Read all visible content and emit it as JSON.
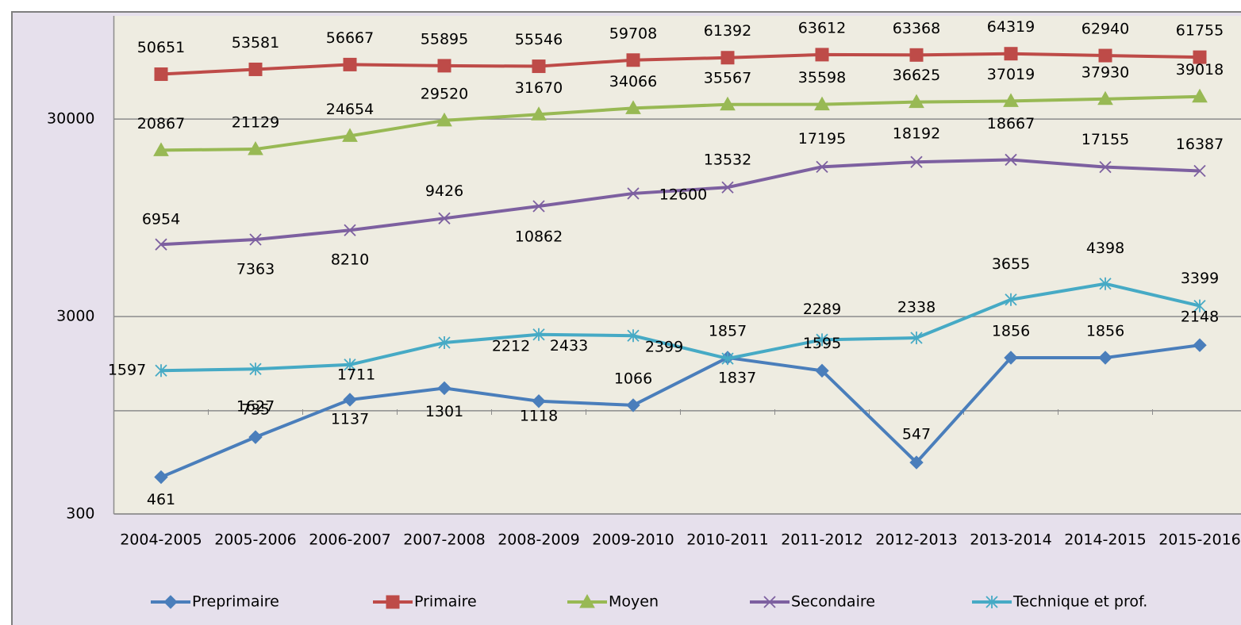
{
  "chart_data": {
    "type": "line",
    "categories": [
      "2004-2005",
      "2005-2006",
      "2006-2007",
      "2007-2008",
      "2008-2009",
      "2009-2010",
      "2010-2011",
      "2011-2012",
      "2012-2013",
      "2013-2014",
      "2014-2015",
      "2015-2016"
    ],
    "series": [
      {
        "name": "Preprimaire",
        "color": "#4a7ebb",
        "marker": "diamond",
        "values": [
          461,
          735,
          1137,
          1301,
          1118,
          1066,
          1857,
          1595,
          547,
          1856,
          1856,
          2148
        ]
      },
      {
        "name": "Primaire",
        "color": "#be4b48",
        "marker": "square",
        "values": [
          50651,
          53581,
          56667,
          55895,
          55546,
          59708,
          61392,
          63612,
          63368,
          64319,
          62940,
          61755
        ]
      },
      {
        "name": "Moyen",
        "color": "#98b954",
        "marker": "triangle",
        "values": [
          20867,
          21129,
          24654,
          29520,
          31670,
          34066,
          35567,
          35598,
          36625,
          37019,
          37930,
          39018
        ]
      },
      {
        "name": "Secondaire",
        "color": "#7d60a0",
        "marker": "x",
        "values": [
          6954,
          7363,
          8210,
          9426,
          10862,
          12600,
          13532,
          17195,
          18192,
          18667,
          17155,
          16387
        ]
      },
      {
        "name": "Technique et prof.",
        "color": "#46aac5",
        "marker": "star",
        "values": [
          1597,
          1627,
          1711,
          2212,
          2433,
          2399,
          1837,
          2289,
          2338,
          3655,
          4398,
          3399
        ]
      }
    ],
    "log_scale": true,
    "ylim": [
      300,
      100000
    ],
    "yticks": [
      300,
      3000,
      30000
    ],
    "minor_yticks": [
      1000
    ],
    "grid": true,
    "legend": "bottom"
  }
}
